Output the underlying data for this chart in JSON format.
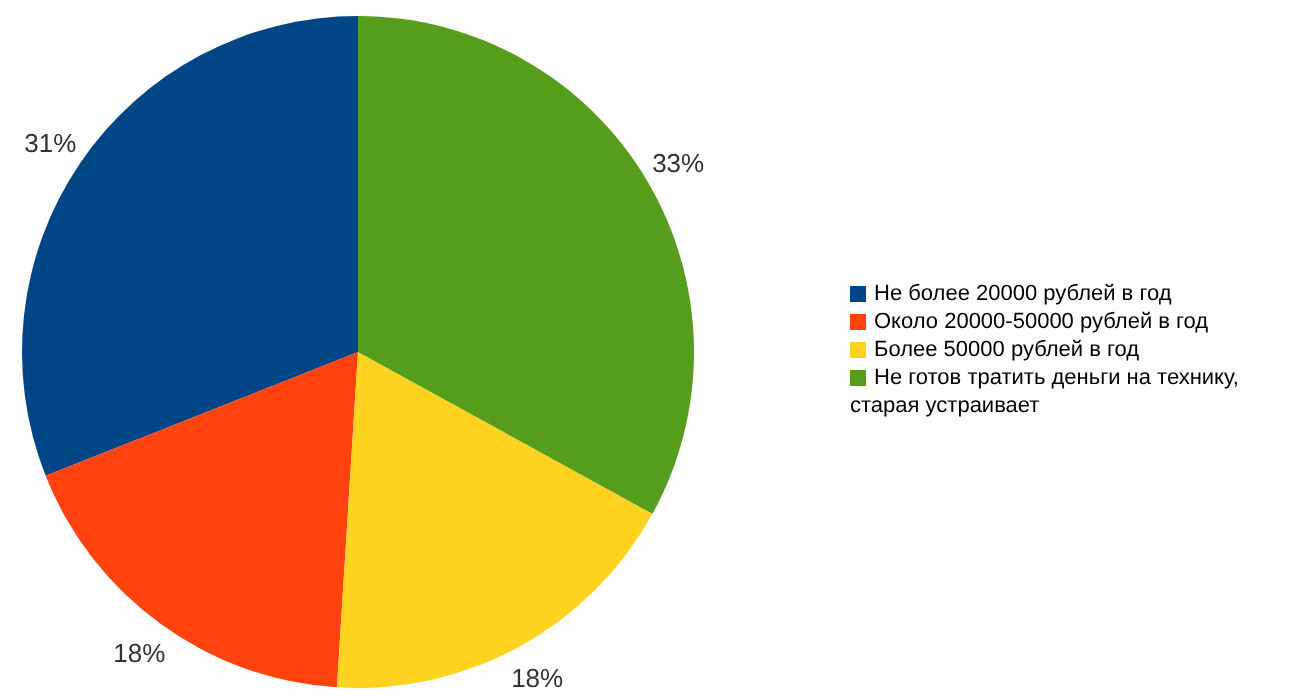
{
  "chart_data": {
    "type": "pie",
    "categories": [
      "Не более 20000 рублей в год",
      "Около 20000-50000 рублей в год",
      "Более 50000 рублей в год",
      "Не готов тратить деньги на технику, старая устраивает"
    ],
    "values": [
      31,
      18,
      18,
      33
    ],
    "value_labels": [
      "31%",
      "18%",
      "18%",
      "33%"
    ],
    "colors": [
      "#004586",
      "#ff420e",
      "#ffd320",
      "#579d1c"
    ],
    "legend": "right"
  }
}
